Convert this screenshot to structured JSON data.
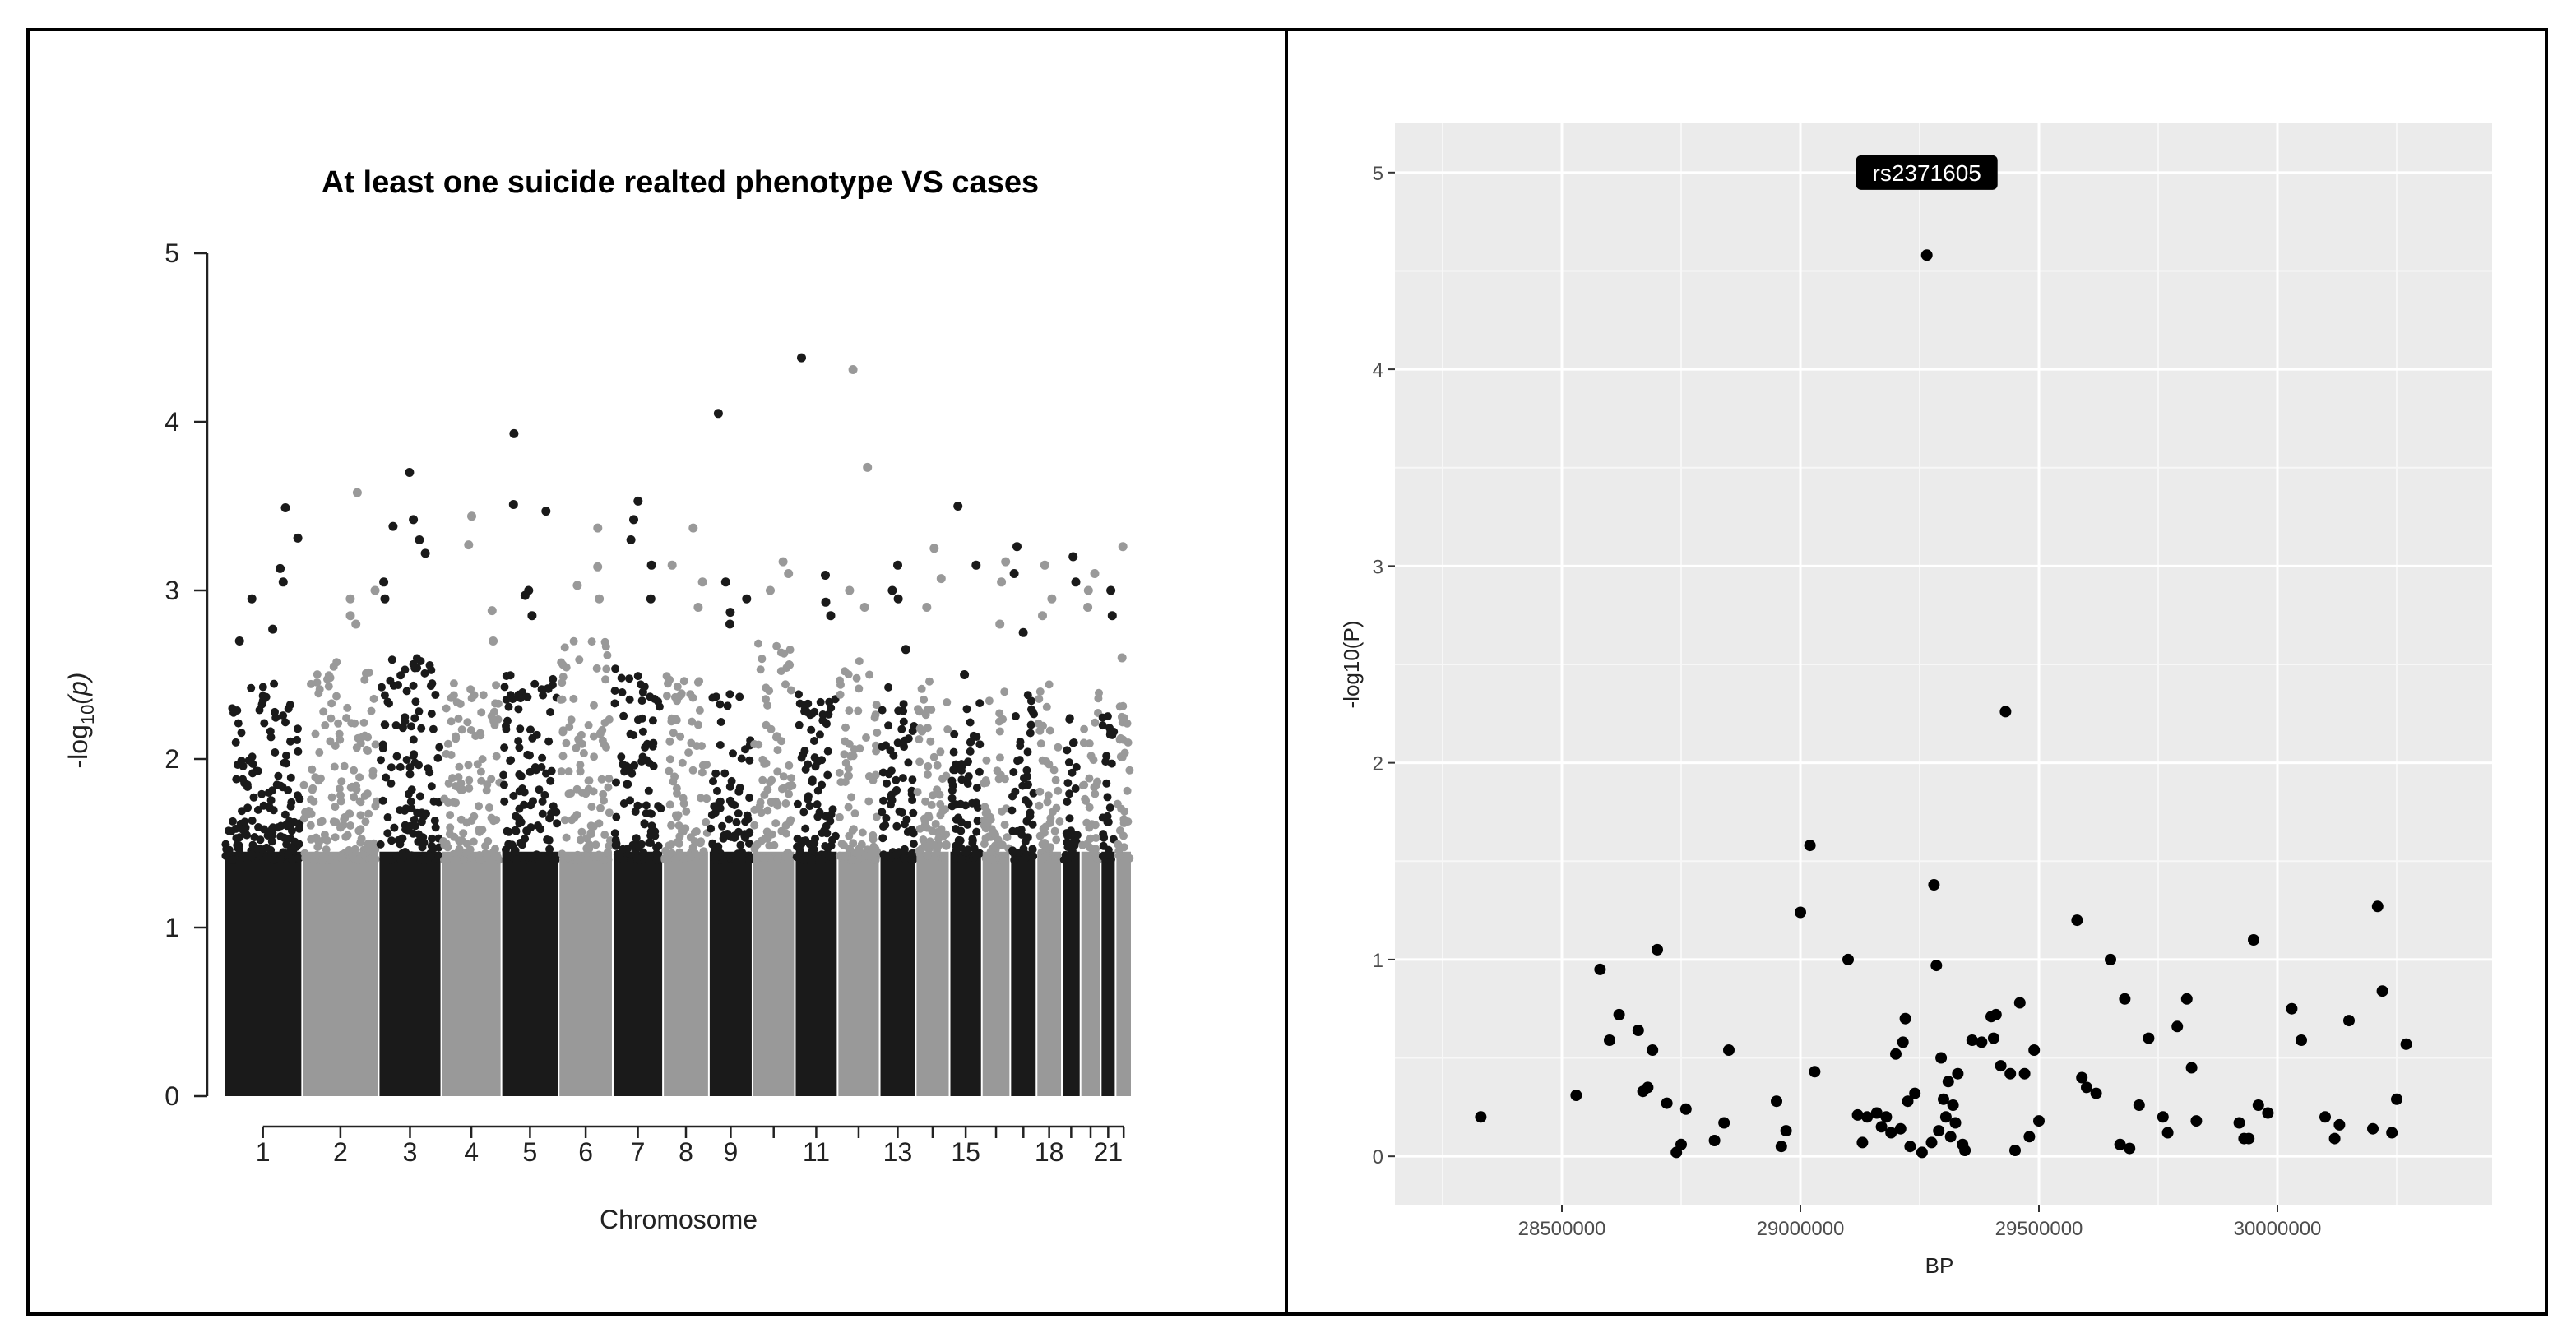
{
  "chart_data": [
    {
      "type": "scatter",
      "subtype": "manhattan",
      "title": "At least one suicide realted phenotype VS cases",
      "xlabel": "Chromosome",
      "ylabel_main": "-log",
      "ylabel_sub": "10",
      "ylabel_tail": "(p)",
      "ylim": [
        0,
        5
      ],
      "yticks": [
        "0",
        "1",
        "2",
        "3",
        "4",
        "5"
      ],
      "chromosome_labels": [
        "1",
        "2",
        "3",
        "4",
        "5",
        "6",
        "7",
        "8",
        "9",
        "11",
        "13",
        "15",
        "18",
        "21"
      ],
      "colors": [
        "#1a1a1a",
        "#999999"
      ],
      "chromosomes": [
        {
          "chr": 1,
          "color": 0,
          "bulk": 2.45,
          "peaks": [
            3.49,
            3.31,
            3.13,
            3.05,
            2.95,
            2.77,
            2.7
          ]
        },
        {
          "chr": 2,
          "color": 1,
          "bulk": 2.6,
          "peaks": [
            3.58,
            3.0,
            2.95,
            2.85,
            2.8
          ]
        },
        {
          "chr": 3,
          "color": 0,
          "bulk": 2.6,
          "peaks": [
            3.7,
            3.42,
            3.38,
            3.3,
            3.22,
            3.05,
            2.95
          ]
        },
        {
          "chr": 4,
          "color": 1,
          "bulk": 2.45,
          "peaks": [
            3.44,
            3.27,
            2.88,
            2.7
          ]
        },
        {
          "chr": 5,
          "color": 0,
          "bulk": 2.5,
          "peaks": [
            3.93,
            3.51,
            3.47,
            3.0,
            2.97,
            2.85
          ]
        },
        {
          "chr": 6,
          "color": 1,
          "bulk": 2.7,
          "peaks": [
            3.37,
            3.14,
            3.03,
            2.95
          ]
        },
        {
          "chr": 7,
          "color": 0,
          "bulk": 2.55,
          "peaks": [
            3.53,
            3.42,
            3.3,
            3.15,
            2.95
          ]
        },
        {
          "chr": 8,
          "color": 1,
          "bulk": 2.5,
          "peaks": [
            3.37,
            3.15,
            3.05,
            2.9
          ]
        },
        {
          "chr": 9,
          "color": 0,
          "bulk": 2.4,
          "peaks": [
            4.05,
            3.05,
            2.95,
            2.87,
            2.8
          ]
        },
        {
          "chr": 10,
          "color": 1,
          "bulk": 2.7,
          "peaks": [
            3.17,
            3.1,
            3.0
          ]
        },
        {
          "chr": 11,
          "color": 0,
          "bulk": 2.4,
          "peaks": [
            4.38,
            3.09,
            2.93,
            2.85
          ]
        },
        {
          "chr": 12,
          "color": 1,
          "bulk": 2.6,
          "peaks": [
            4.31,
            3.73,
            3.0,
            2.9
          ]
        },
        {
          "chr": 13,
          "color": 0,
          "bulk": 2.45,
          "peaks": [
            3.15,
            3.0,
            2.95,
            2.65
          ]
        },
        {
          "chr": 14,
          "color": 1,
          "bulk": 2.5,
          "peaks": [
            3.25,
            3.07,
            2.9
          ]
        },
        {
          "chr": 15,
          "color": 0,
          "bulk": 2.35,
          "peaks": [
            3.5,
            3.15,
            2.5
          ]
        },
        {
          "chr": 16,
          "color": 1,
          "bulk": 2.5,
          "peaks": [
            3.17,
            3.05,
            2.8
          ]
        },
        {
          "chr": 17,
          "color": 0,
          "bulk": 2.4,
          "peaks": [
            3.26,
            3.1,
            2.75
          ]
        },
        {
          "chr": 18,
          "color": 1,
          "bulk": 2.45,
          "peaks": [
            3.15,
            2.95,
            2.85
          ]
        },
        {
          "chr": 19,
          "color": 0,
          "bulk": 2.3,
          "peaks": [
            3.2,
            3.05
          ]
        },
        {
          "chr": 20,
          "color": 1,
          "bulk": 2.45,
          "peaks": [
            3.1,
            3.0,
            2.9
          ]
        },
        {
          "chr": 21,
          "color": 0,
          "bulk": 2.3,
          "peaks": [
            3.0,
            2.85
          ]
        },
        {
          "chr": 22,
          "color": 1,
          "bulk": 2.35,
          "peaks": [
            3.26,
            2.6
          ]
        }
      ]
    },
    {
      "type": "scatter",
      "xlabel": "BP",
      "ylabel": "-log10(P)",
      "xlim": [
        28150000,
        30450000
      ],
      "ylim": [
        -0.25,
        5.25
      ],
      "xticks": [
        28500000,
        29000000,
        29500000,
        30000000
      ],
      "xtick_labels": [
        "28500000",
        "29000000",
        "29500000",
        "30000000"
      ],
      "yticks": [
        0,
        1,
        2,
        3,
        4,
        5
      ],
      "ytick_labels": [
        "0",
        "1",
        "2",
        "3",
        "4",
        "5"
      ],
      "grid": true,
      "panel_color": "#ebebeb",
      "annotation": {
        "label": "rs2371605",
        "x": 29265000,
        "y": 5.0
      },
      "x": [
        28330000,
        28530000,
        28580000,
        28600000,
        28620000,
        28660000,
        28670000,
        28680000,
        28690000,
        28700000,
        28720000,
        28740000,
        28750000,
        28760000,
        28820000,
        28840000,
        28850000,
        28950000,
        28960000,
        28970000,
        29000000,
        29020000,
        29030000,
        29100000,
        29120000,
        29130000,
        29140000,
        29160000,
        29170000,
        29180000,
        29190000,
        29200000,
        29210000,
        29215000,
        29220000,
        29225000,
        29230000,
        29240000,
        29255000,
        29265000,
        29275000,
        29280000,
        29285000,
        29290000,
        29295000,
        29300000,
        29305000,
        29310000,
        29315000,
        29320000,
        29325000,
        29330000,
        29340000,
        29345000,
        29360000,
        29380000,
        29400000,
        29405000,
        29410000,
        29420000,
        29430000,
        29440000,
        29450000,
        29460000,
        29470000,
        29480000,
        29490000,
        29500000,
        29580000,
        29590000,
        29600000,
        29620000,
        29650000,
        29670000,
        29680000,
        29690000,
        29710000,
        29730000,
        29760000,
        29770000,
        29790000,
        29810000,
        29820000,
        29830000,
        29920000,
        29930000,
        29940000,
        29950000,
        29960000,
        29980000,
        30030000,
        30050000,
        30100000,
        30120000,
        30130000,
        30150000,
        30200000,
        30210000,
        30220000,
        30240000,
        30250000,
        30270000
      ],
      "y": [
        0.2,
        0.31,
        0.95,
        0.59,
        0.72,
        0.64,
        0.33,
        0.35,
        0.54,
        1.05,
        0.27,
        0.02,
        0.06,
        0.24,
        0.08,
        0.17,
        0.54,
        0.28,
        0.05,
        0.13,
        1.24,
        1.58,
        0.43,
        1.0,
        0.21,
        0.07,
        0.2,
        0.22,
        0.15,
        0.2,
        0.12,
        0.52,
        0.14,
        0.58,
        0.7,
        0.28,
        0.05,
        0.32,
        0.02,
        4.58,
        0.07,
        1.38,
        0.97,
        0.13,
        0.5,
        0.29,
        0.2,
        0.38,
        0.1,
        0.26,
        0.17,
        0.42,
        0.06,
        0.03,
        0.59,
        0.58,
        0.71,
        0.6,
        0.72,
        0.46,
        2.26,
        0.42,
        0.03,
        0.78,
        0.42,
        0.1,
        0.54,
        0.18,
        1.2,
        0.4,
        0.35,
        0.32,
        1.0,
        0.06,
        0.8,
        0.04,
        0.26,
        0.6,
        0.2,
        0.12,
        0.66,
        0.8,
        0.45,
        0.18,
        0.17,
        0.09,
        0.09,
        1.1,
        0.26,
        0.22,
        0.75,
        0.59,
        0.2,
        0.09,
        0.16,
        0.69,
        0.14,
        1.27,
        0.84,
        0.12,
        0.29,
        0.57
      ]
    }
  ]
}
